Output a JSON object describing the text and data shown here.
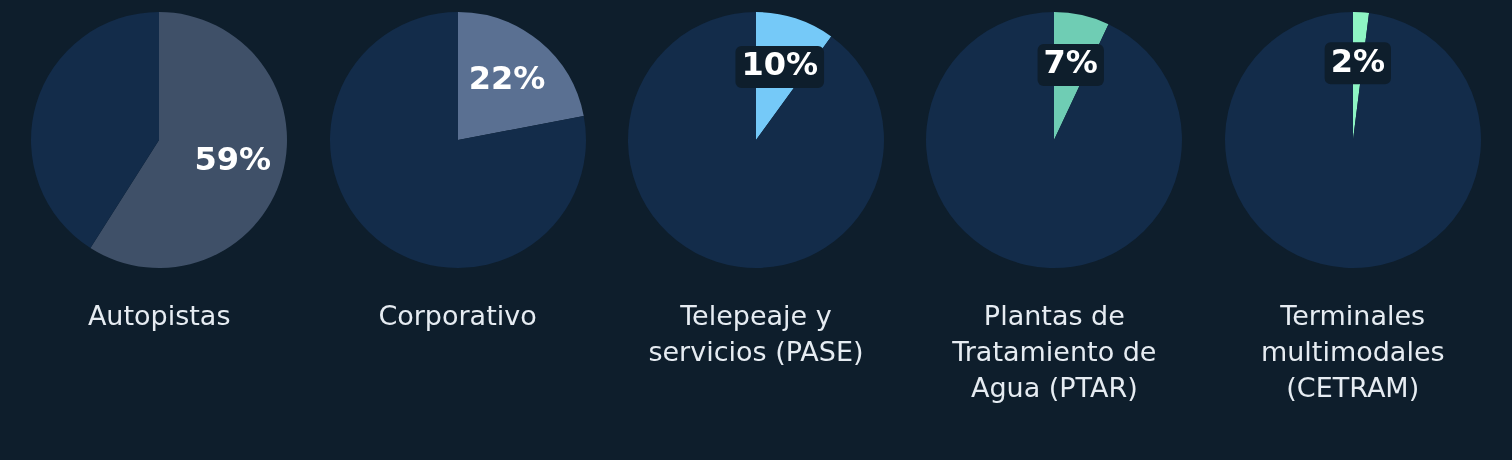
{
  "chart_data": [
    {
      "type": "pie",
      "title": "Autopistas",
      "categories": [
        null,
        null
      ],
      "values": [
        59,
        41
      ],
      "colors": [
        "#3f5068",
        "#132c4a"
      ],
      "value_labels": [
        "59%",
        null
      ]
    },
    {
      "type": "pie",
      "title": "Corporativo",
      "categories": [
        null,
        null
      ],
      "values": [
        22,
        78
      ],
      "colors": [
        "#5a7092",
        "#132c4a"
      ],
      "value_labels": [
        "22%",
        null
      ]
    },
    {
      "type": "pie",
      "title": "Telepeaje y servicios (PASE)",
      "categories": [
        null,
        null
      ],
      "values": [
        10,
        90
      ],
      "colors": [
        "#75c9f8",
        "#132c4a"
      ],
      "value_labels": [
        "10%",
        null
      ]
    },
    {
      "type": "pie",
      "title": "Plantas de Tratamiento de Agua (PTAR)",
      "categories": [
        null,
        null
      ],
      "values": [
        7,
        93
      ],
      "colors": [
        "#6fcdb4",
        "#132c4a"
      ],
      "value_labels": [
        "7%",
        null
      ]
    },
    {
      "type": "pie",
      "title": "Terminales multimodales (CETRAM)",
      "categories": [
        null,
        null
      ],
      "values": [
        2,
        98
      ],
      "colors": [
        "#8ef5c4",
        "#132c4a"
      ],
      "value_labels": [
        "2%",
        null
      ]
    }
  ]
}
